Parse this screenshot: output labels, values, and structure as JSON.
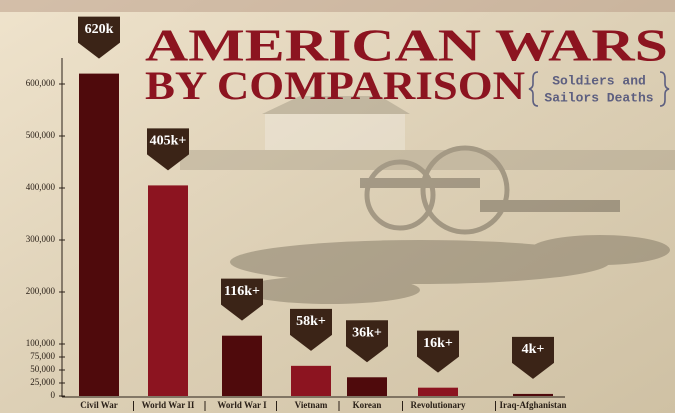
{
  "chart_data": {
    "type": "bar",
    "title": [
      "AMERICAN WARS",
      "BY COMPARISON"
    ],
    "subtitle": [
      "Soldiers and",
      "Sailors Deaths"
    ],
    "categories": [
      "Civil War",
      "World War II",
      "World War I",
      "Vietnam",
      "Korean",
      "Revolutionary",
      "Iraq-Afghanistan"
    ],
    "values": [
      620000,
      405000,
      116000,
      58000,
      36000,
      16000,
      4000
    ],
    "value_labels": [
      "620k",
      "405k+",
      "116k+",
      "58k+",
      "36k+",
      "16k+",
      "4k+"
    ],
    "colors": [
      "#4f0a0c",
      "#8c1420",
      "#4f0a0c",
      "#8c1420",
      "#4f0a0c",
      "#8c1420",
      "#4f0a0c"
    ],
    "ylim": [
      0,
      650000
    ],
    "yticks": [
      {
        "value": 0,
        "label": "0"
      },
      {
        "value": 25000,
        "label": "25,000"
      },
      {
        "value": 50000,
        "label": "50,000"
      },
      {
        "value": 75000,
        "label": "75,000"
      },
      {
        "value": 100000,
        "label": "100,000"
      },
      {
        "value": 200000,
        "label": "200,000"
      },
      {
        "value": 300000,
        "label": "300,000"
      },
      {
        "value": 400000,
        "label": "400,000"
      },
      {
        "value": 500000,
        "label": "500,000"
      },
      {
        "value": 600000,
        "label": "600,000"
      }
    ]
  }
}
